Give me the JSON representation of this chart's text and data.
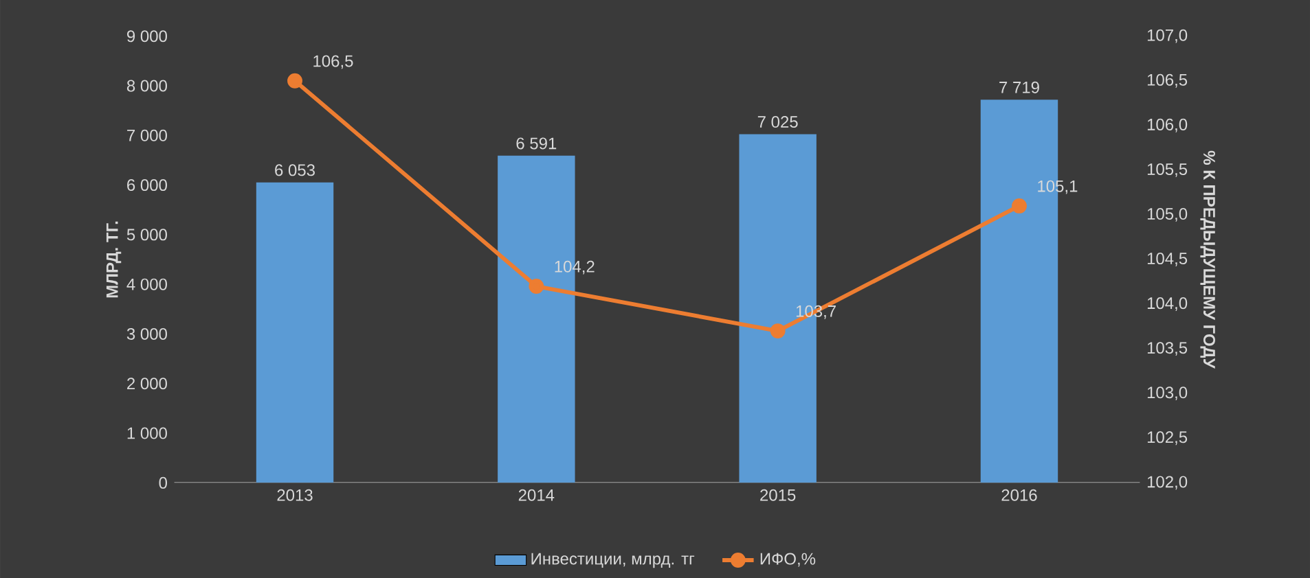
{
  "chart_data": {
    "type": "bar",
    "categories": [
      "2013",
      "2014",
      "2015",
      "2016"
    ],
    "series": [
      {
        "name": "Инвестиции, млрд. тг",
        "color": "#5b9bd5",
        "values": [
          6053,
          6591,
          7025,
          7719
        ],
        "value_labels": [
          "6 053",
          "6 591",
          "7 025",
          "7 719"
        ]
      },
      {
        "name": "ИФО,%",
        "type": "line",
        "axis": "y2",
        "color": "#ed7d31",
        "marker": "circle",
        "values": [
          106.5,
          104.2,
          103.7,
          105.1
        ],
        "value_labels": [
          "106,5",
          "104,2",
          "103,7",
          "105,1"
        ]
      }
    ],
    "ylabel": "МЛРД. ТГ.",
    "y2label": "% К ПРЕДЫДУЩЕМУ ГОДУ",
    "ylim": [
      0,
      9000
    ],
    "yticks": [
      0,
      {
        "value": 1000,
        "label": "1 000"
      },
      {
        "value": 2000,
        "label": "2 000"
      },
      {
        "value": 3000,
        "label": "3 000"
      },
      {
        "value": 4000,
        "label": "4 000"
      },
      {
        "value": 5000,
        "label": "5 000"
      },
      {
        "value": 6000,
        "label": "6 000"
      },
      {
        "value": 7000,
        "label": "7 000"
      },
      {
        "value": 8000,
        "label": "8 000"
      },
      {
        "value": 9000,
        "label": "9 000"
      }
    ],
    "y2lim": [
      102,
      107
    ],
    "y2ticks": [
      {
        "value": 102,
        "label": "102,0"
      },
      {
        "value": 102.5,
        "label": "102,5"
      },
      {
        "value": 103,
        "label": "103,0"
      },
      {
        "value": 103.5,
        "label": "103,5"
      },
      {
        "value": 104,
        "label": "104,0"
      },
      {
        "value": 104.5,
        "label": "104,5"
      },
      {
        "value": 105,
        "label": "105,0"
      },
      {
        "value": 105.5,
        "label": "105,5"
      },
      {
        "value": 106,
        "label": "106,0"
      },
      {
        "value": 106.5,
        "label": "106,5"
      },
      {
        "value": 107,
        "label": "107,0"
      }
    ],
    "legend": "bottom"
  }
}
